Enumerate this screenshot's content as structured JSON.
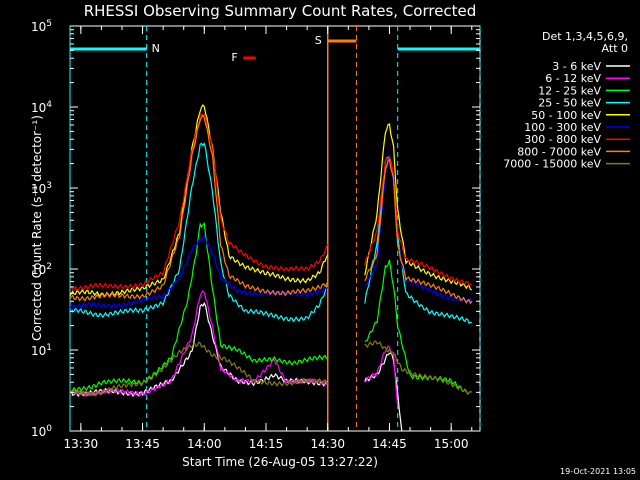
{
  "chart_data": {
    "type": "line",
    "title": "RHESSI Observing Summary Count Rates, Corrected",
    "xlabel": "Start Time (26-Aug-05 13:27:22)",
    "ylabel": "Corrected Count Rate (s⁻¹ detector⁻¹)",
    "y_scale": "log",
    "xlim": [
      "13:27:22",
      "15:07:00"
    ],
    "ylim": [
      1,
      100000
    ],
    "xticks": [
      "13:30",
      "13:45",
      "14:00",
      "14:15",
      "14:30",
      "14:45",
      "15:00"
    ],
    "yticks": [
      {
        "base": "10",
        "exp": "0"
      },
      {
        "base": "10",
        "exp": "1"
      },
      {
        "base": "10",
        "exp": "2"
      },
      {
        "base": "10",
        "exp": "3"
      },
      {
        "base": "10",
        "exp": "4"
      },
      {
        "base": "10",
        "exp": "5"
      }
    ],
    "legend": {
      "placement": "right",
      "header": [
        "Det 1,3,4,5,6,9,",
        "Att 0"
      ]
    },
    "footer_date": "19-Oct-2021 13:05",
    "annotations": {
      "night_label": "N",
      "saa_label": "S",
      "flare_label": "F"
    },
    "night_intervals": [
      [
        "13:27:22",
        "13:46:00"
      ],
      [
        "14:47:00",
        "15:07:00"
      ]
    ],
    "saa_interval": [
      "14:30:00",
      "14:37:00"
    ],
    "flare_interval": [
      "14:09:30",
      "14:12:30"
    ],
    "gap": [
      "14:30:00",
      "14:39:00"
    ],
    "series": [
      {
        "name": "3 - 6 keV",
        "color": "#ffffff",
        "points": [
          [
            "13:27:22",
            3
          ],
          [
            "13:45",
            3
          ],
          [
            "13:52",
            4
          ],
          [
            "13:57",
            10
          ],
          [
            "13:59",
            35
          ],
          [
            "14:00",
            40
          ],
          [
            "14:02",
            15
          ],
          [
            "14:04",
            6
          ],
          [
            "14:08",
            4
          ],
          [
            "14:12",
            4
          ],
          [
            "14:17",
            5
          ],
          [
            "14:20",
            4
          ],
          [
            "14:30",
            4
          ],
          [
            "14:39",
            4
          ],
          [
            "14:42",
            5
          ],
          [
            "14:44",
            8
          ],
          [
            "14:45",
            10
          ],
          [
            "14:46",
            8
          ],
          [
            "14:47",
            3
          ],
          [
            "14:48",
            1
          ]
        ]
      },
      {
        "name": "6 - 12 keV",
        "color": "#ff00ff",
        "points": [
          [
            "13:27:22",
            3
          ],
          [
            "13:45",
            3
          ],
          [
            "13:52",
            4
          ],
          [
            "13:57",
            15
          ],
          [
            "13:59",
            50
          ],
          [
            "14:00",
            55
          ],
          [
            "14:02",
            20
          ],
          [
            "14:04",
            6
          ],
          [
            "14:08",
            4
          ],
          [
            "14:12",
            4
          ],
          [
            "14:17",
            8
          ],
          [
            "14:20",
            4
          ],
          [
            "14:30",
            4
          ],
          [
            "14:39",
            4
          ],
          [
            "14:42",
            5
          ],
          [
            "14:44",
            10
          ],
          [
            "14:45",
            11
          ],
          [
            "14:46",
            9
          ],
          [
            "14:47",
            2
          ]
        ]
      },
      {
        "name": "12 - 25 keV",
        "color": "#00ff00",
        "points": [
          [
            "13:27:22",
            3
          ],
          [
            "13:35",
            4
          ],
          [
            "13:45",
            4
          ],
          [
            "13:52",
            8
          ],
          [
            "13:56",
            40
          ],
          [
            "13:58",
            150
          ],
          [
            "13:59",
            350
          ],
          [
            "14:00",
            350
          ],
          [
            "14:02",
            60
          ],
          [
            "14:04",
            12
          ],
          [
            "14:08",
            10
          ],
          [
            "14:12",
            7
          ],
          [
            "14:17",
            8
          ],
          [
            "14:22",
            7
          ],
          [
            "14:30",
            8
          ],
          [
            "14:39",
            12
          ],
          [
            "14:42",
            22
          ],
          [
            "14:44",
            100
          ],
          [
            "14:45",
            120
          ],
          [
            "14:46",
            60
          ],
          [
            "14:47",
            20
          ],
          [
            "14:50",
            5
          ],
          [
            "15:00",
            4
          ],
          [
            "15:04",
            3
          ]
        ]
      },
      {
        "name": "25 - 50 keV",
        "color": "#00ffff",
        "points": [
          [
            "13:27:22",
            30
          ],
          [
            "13:35",
            28
          ],
          [
            "13:45",
            30
          ],
          [
            "13:50",
            40
          ],
          [
            "13:54",
            100
          ],
          [
            "13:57",
            1000
          ],
          [
            "13:59",
            3200
          ],
          [
            "14:00",
            3500
          ],
          [
            "14:02",
            900
          ],
          [
            "14:04",
            120
          ],
          [
            "14:06",
            50
          ],
          [
            "14:10",
            30
          ],
          [
            "14:15",
            27
          ],
          [
            "14:20",
            25
          ],
          [
            "14:25",
            25
          ],
          [
            "14:28",
            35
          ],
          [
            "14:30",
            60
          ],
          [
            "14:39",
            40
          ],
          [
            "14:42",
            200
          ],
          [
            "14:44",
            2000
          ],
          [
            "14:45",
            2500
          ],
          [
            "14:46",
            1200
          ],
          [
            "14:47",
            250
          ],
          [
            "14:49",
            50
          ],
          [
            "14:55",
            30
          ],
          [
            "15:00",
            25
          ],
          [
            "15:05",
            22
          ]
        ]
      },
      {
        "name": "50 - 100 keV",
        "color": "#ffff00",
        "points": [
          [
            "13:27:22",
            50
          ],
          [
            "13:35",
            50
          ],
          [
            "13:45",
            55
          ],
          [
            "13:50",
            75
          ],
          [
            "13:54",
            300
          ],
          [
            "13:57",
            3000
          ],
          [
            "13:59",
            9000
          ],
          [
            "14:00",
            10000
          ],
          [
            "14:02",
            3000
          ],
          [
            "14:04",
            500
          ],
          [
            "14:06",
            150
          ],
          [
            "14:10",
            110
          ],
          [
            "14:15",
            85
          ],
          [
            "14:20",
            75
          ],
          [
            "14:25",
            75
          ],
          [
            "14:28",
            90
          ],
          [
            "14:30",
            150
          ],
          [
            "14:39",
            90
          ],
          [
            "14:42",
            500
          ],
          [
            "14:44",
            5000
          ],
          [
            "14:45",
            6000
          ],
          [
            "14:46",
            3000
          ],
          [
            "14:47",
            500
          ],
          [
            "14:49",
            120
          ],
          [
            "14:55",
            90
          ],
          [
            "15:00",
            70
          ],
          [
            "15:05",
            55
          ]
        ]
      },
      {
        "name": "100 - 300 keV",
        "color": "#0000ff",
        "points": [
          [
            "13:27:22",
            35
          ],
          [
            "13:35",
            35
          ],
          [
            "13:45",
            40
          ],
          [
            "13:50",
            45
          ],
          [
            "13:54",
            80
          ],
          [
            "13:57",
            180
          ],
          [
            "13:59",
            230
          ],
          [
            "14:00",
            240
          ],
          [
            "14:02",
            150
          ],
          [
            "14:04",
            75
          ],
          [
            "14:08",
            55
          ],
          [
            "14:15",
            50
          ],
          [
            "14:20",
            48
          ],
          [
            "14:25",
            50
          ],
          [
            "14:28",
            55
          ],
          [
            "14:30",
            60
          ],
          [
            "14:39",
            60
          ],
          [
            "14:42",
            120
          ],
          [
            "14:44",
            1500
          ],
          [
            "14:45",
            2500
          ],
          [
            "14:46",
            1200
          ],
          [
            "14:47",
            200
          ],
          [
            "14:49",
            70
          ],
          [
            "14:55",
            55
          ],
          [
            "15:00",
            45
          ],
          [
            "15:05",
            38
          ]
        ]
      },
      {
        "name": "300 - 800 keV",
        "color": "#ff0000",
        "points": [
          [
            "13:27:22",
            60
          ],
          [
            "13:35",
            60
          ],
          [
            "13:45",
            65
          ],
          [
            "13:50",
            85
          ],
          [
            "13:54",
            400
          ],
          [
            "13:57",
            3000
          ],
          [
            "13:59",
            8000
          ],
          [
            "14:00",
            8500
          ],
          [
            "14:02",
            3000
          ],
          [
            "14:04",
            400
          ],
          [
            "14:06",
            200
          ],
          [
            "14:10",
            150
          ],
          [
            "14:15",
            110
          ],
          [
            "14:20",
            95
          ],
          [
            "14:25",
            100
          ],
          [
            "14:28",
            130
          ],
          [
            "14:30",
            200
          ],
          [
            "14:39",
            110
          ],
          [
            "14:42",
            300
          ],
          [
            "14:44",
            2200
          ],
          [
            "14:45",
            2600
          ],
          [
            "14:46",
            1500
          ],
          [
            "14:47",
            300
          ],
          [
            "14:49",
            130
          ],
          [
            "14:55",
            100
          ],
          [
            "15:00",
            80
          ],
          [
            "15:05",
            65
          ]
        ]
      },
      {
        "name": "800 - 7000 keV",
        "color": "#ff8000",
        "points": [
          [
            "13:27:22",
            45
          ],
          [
            "13:35",
            45
          ],
          [
            "13:45",
            48
          ],
          [
            "13:50",
            60
          ],
          [
            "13:54",
            250
          ],
          [
            "13:57",
            2500
          ],
          [
            "13:59",
            7500
          ],
          [
            "14:00",
            8000
          ],
          [
            "14:02",
            2500
          ],
          [
            "14:04",
            200
          ],
          [
            "14:06",
            80
          ],
          [
            "14:10",
            60
          ],
          [
            "14:15",
            55
          ],
          [
            "14:20",
            50
          ],
          [
            "14:25",
            52
          ],
          [
            "14:28",
            60
          ],
          [
            "14:30",
            70
          ],
          [
            "14:39",
            70
          ],
          [
            "14:42",
            150
          ],
          [
            "14:44",
            1800
          ],
          [
            "14:45",
            2300
          ],
          [
            "14:46",
            1300
          ],
          [
            "14:47",
            200
          ],
          [
            "14:49",
            80
          ],
          [
            "14:55",
            60
          ],
          [
            "15:00",
            50
          ],
          [
            "15:05",
            40
          ]
        ]
      },
      {
        "name": "7000 - 15000 keV",
        "color": "#808000",
        "points": [
          [
            "13:27:22",
            3
          ],
          [
            "13:35",
            3
          ],
          [
            "13:45",
            4
          ],
          [
            "13:50",
            6
          ],
          [
            "13:54",
            9
          ],
          [
            "13:57",
            11
          ],
          [
            "13:59",
            12
          ],
          [
            "14:00",
            11
          ],
          [
            "14:02",
            9
          ],
          [
            "14:05",
            8
          ],
          [
            "14:08",
            6
          ],
          [
            "14:12",
            4
          ],
          [
            "14:17",
            4
          ],
          [
            "14:22",
            4
          ],
          [
            "14:30",
            4
          ],
          [
            "14:39",
            11
          ],
          [
            "14:42",
            12
          ],
          [
            "14:44",
            10
          ],
          [
            "14:46",
            9
          ],
          [
            "14:48",
            6
          ],
          [
            "14:52",
            5
          ],
          [
            "14:58",
            4
          ],
          [
            "15:05",
            3
          ]
        ]
      }
    ]
  }
}
